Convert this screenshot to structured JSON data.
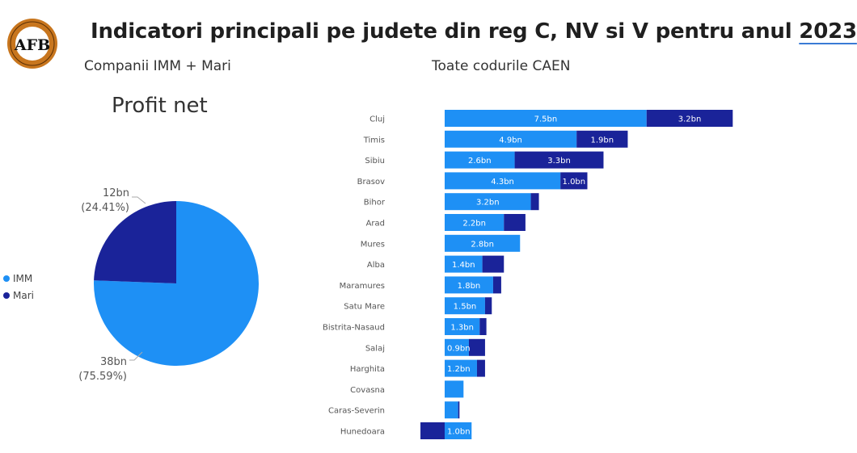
{
  "logo": {
    "initials": "AFB"
  },
  "header": {
    "title_main": "Indicatori principali pe judete din reg C, NV si V pentru anul",
    "title_year": "2023",
    "subtitle_left": "Companii IMM + Mari",
    "subtitle_right": "Toate codurile CAEN"
  },
  "colors": {
    "imm": "#1E90F5",
    "mari": "#1A2399"
  },
  "chart_data": [
    {
      "type": "pie",
      "title": "Profit net",
      "legend_position": "left",
      "slices": [
        {
          "name": "IMM",
          "value": 38,
          "value_label": "38bn",
          "percent_label": "(75.59%)",
          "percent": 75.59
        },
        {
          "name": "Mari",
          "value": 12,
          "value_label": "12bn",
          "percent_label": "(24.41%)",
          "percent": 24.41
        }
      ]
    },
    {
      "type": "bar",
      "orientation": "horizontal",
      "stacked": true,
      "unit": "bn",
      "categories": [
        "Cluj",
        "Timis",
        "Sibiu",
        "Brasov",
        "Bihor",
        "Arad",
        "Mures",
        "Alba",
        "Maramures",
        "Satu Mare",
        "Bistrita-Nasaud",
        "Salaj",
        "Harghita",
        "Covasna",
        "Caras-Severin",
        "Hunedoara"
      ],
      "series": [
        {
          "name": "IMM",
          "values": [
            7.5,
            4.9,
            2.6,
            4.3,
            3.2,
            2.2,
            2.8,
            1.4,
            1.8,
            1.5,
            1.3,
            0.9,
            1.2,
            0.7,
            0.5,
            1.0
          ],
          "labels": [
            "7.5bn",
            "4.9bn",
            "2.6bn",
            "4.3bn",
            "3.2bn",
            "2.2bn",
            "2.8bn",
            "1.4bn",
            "1.8bn",
            "1.5bn",
            "1.3bn",
            "0.9bn",
            "1.2bn",
            "",
            "",
            "1.0bn"
          ]
        },
        {
          "name": "Mari",
          "values": [
            3.2,
            1.9,
            3.3,
            1.0,
            0.3,
            0.8,
            0.0,
            0.8,
            0.3,
            0.25,
            0.25,
            0.6,
            0.3,
            0.0,
            0.05,
            -0.9
          ],
          "labels": [
            "3.2bn",
            "1.9bn",
            "3.3bn",
            "1.0bn",
            "",
            "",
            "",
            "",
            "",
            "",
            "",
            "",
            "",
            "",
            "",
            ""
          ]
        }
      ]
    }
  ]
}
